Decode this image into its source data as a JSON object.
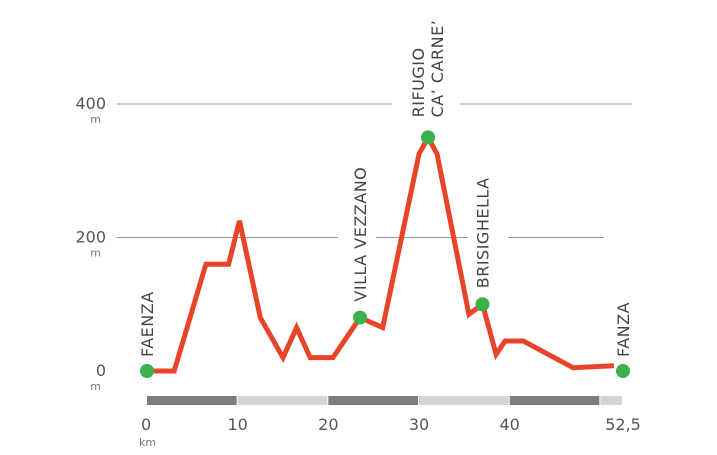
{
  "chart_data": {
    "type": "line",
    "x": [
      0,
      3,
      6.5,
      9,
      10.2,
      12.5,
      15,
      16.5,
      18,
      20.5,
      23.5,
      26,
      30,
      31,
      32,
      35.5,
      37,
      38.5,
      39.5,
      41.5,
      47,
      51.5
    ],
    "values": [
      0,
      0,
      160,
      160,
      225,
      80,
      20,
      65,
      20,
      20,
      80,
      65,
      325,
      350,
      325,
      85,
      100,
      25,
      45,
      45,
      5,
      8
    ],
    "xlim": [
      0,
      52.5
    ],
    "ylim": [
      0,
      400
    ],
    "y_ticks": [
      {
        "value": 0,
        "label": "0",
        "unit": "m"
      },
      {
        "value": 200,
        "label": "200",
        "unit": "m"
      },
      {
        "value": 400,
        "label": "400",
        "unit": "m"
      }
    ],
    "x_ticks": [
      {
        "value": 0,
        "label": "0",
        "unit": "km"
      },
      {
        "value": 10,
        "label": "10"
      },
      {
        "value": 20,
        "label": "20"
      },
      {
        "value": 30,
        "label": "30"
      },
      {
        "value": 40,
        "label": "40"
      },
      {
        "value": 52.5,
        "label": "52,5"
      }
    ],
    "waypoints": [
      {
        "x": 0,
        "y": 0,
        "lines": [
          "FAENZA"
        ]
      },
      {
        "x": 23.5,
        "y": 80,
        "lines": [
          "VILLA VEZZANO"
        ]
      },
      {
        "x": 31,
        "y": 350,
        "lines": [
          "RIFUGIO",
          "CA’ CARNE’"
        ]
      },
      {
        "x": 37,
        "y": 100,
        "lines": [
          "BRISIGHELLA"
        ]
      },
      {
        "x": 52.5,
        "y": 0,
        "lines": [
          "FANZA"
        ]
      }
    ],
    "grid": true,
    "colors": {
      "line": "#e8442a",
      "marker": "#3cb04a",
      "grid": "#9a9a9a",
      "scale_dark": "#7d7d7d",
      "scale_light": "#d4d4d4"
    }
  }
}
